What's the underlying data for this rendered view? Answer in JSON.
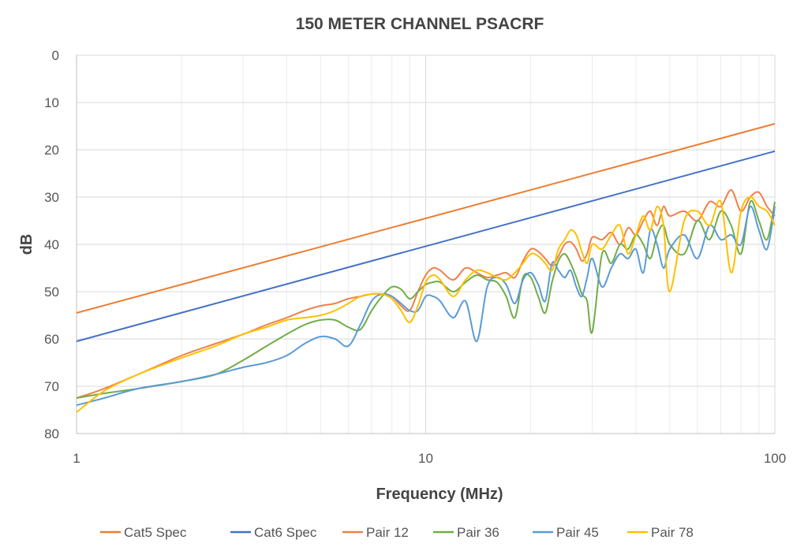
{
  "chart_data": {
    "type": "line",
    "title": "150 METER CHANNEL PSACRF",
    "xlabel": "Frequency (MHz)",
    "ylabel": "dB",
    "xscale": "log",
    "xlim": [
      1,
      100
    ],
    "ylim": [
      0,
      80
    ],
    "y_inverted": true,
    "x_ticks": [
      1,
      10,
      100
    ],
    "x_tick_labels": [
      "1",
      "10",
      "100"
    ],
    "y_ticks": [
      0,
      10,
      20,
      30,
      40,
      50,
      60,
      70,
      80
    ],
    "y_tick_labels": [
      "0",
      "10",
      "20",
      "30",
      "40",
      "50",
      "60",
      "70",
      "80"
    ],
    "grid": true,
    "legend_position": "bottom",
    "series": [
      {
        "name": "Cat5 Spec",
        "color": "#ED7D31",
        "x": [
          1,
          100
        ],
        "y": [
          54.5,
          14.5
        ]
      },
      {
        "name": "Cat6 Spec",
        "color": "#4472C4",
        "x": [
          1,
          100
        ],
        "y": [
          60.5,
          20.3
        ]
      },
      {
        "name": "Pair 12",
        "color": "#F0804A",
        "x": [
          1,
          1.2,
          1.5,
          2,
          2.5,
          3,
          3.5,
          4,
          4.5,
          5,
          5.5,
          6,
          6.5,
          7,
          7.5,
          8,
          8.5,
          9,
          9.5,
          10,
          10.5,
          11,
          12,
          13,
          14,
          15,
          16,
          17,
          18,
          19,
          20,
          21,
          22,
          23,
          24,
          25,
          26,
          27,
          28,
          29,
          30,
          32,
          34,
          36,
          38,
          40,
          42,
          44,
          46,
          48,
          50,
          55,
          60,
          65,
          70,
          75,
          80,
          85,
          90,
          95,
          100
        ],
        "y": [
          72.5,
          70.5,
          67.5,
          63.5,
          61,
          59,
          57,
          55.5,
          54,
          53,
          52.5,
          51.5,
          51,
          50.5,
          50.5,
          51,
          53,
          54,
          50,
          46.5,
          45,
          45.5,
          47.5,
          45,
          46,
          47,
          46.5,
          46,
          47,
          43.5,
          41,
          41.5,
          43,
          44.5,
          42.5,
          40,
          39.5,
          41,
          43.5,
          42,
          38.5,
          39,
          37.5,
          40,
          36.5,
          38,
          35,
          33,
          36,
          32,
          34,
          33,
          35,
          31,
          32,
          28.5,
          33,
          30,
          29,
          32,
          34
        ]
      },
      {
        "name": "Pair 36",
        "color": "#70AD47",
        "x": [
          1,
          1.2,
          1.5,
          2,
          2.5,
          3,
          3.5,
          4,
          4.5,
          5,
          5.5,
          6,
          6.5,
          7,
          7.5,
          8,
          8.5,
          9,
          9.5,
          10,
          10.5,
          11,
          12,
          13,
          14,
          15,
          16,
          17,
          18,
          19,
          20,
          21,
          22,
          23,
          24,
          25,
          26,
          27,
          28,
          29,
          30,
          32,
          34,
          36,
          38,
          40,
          42,
          44,
          46,
          48,
          50,
          55,
          60,
          65,
          70,
          75,
          80,
          85,
          90,
          95,
          100
        ],
        "y": [
          72.5,
          71.5,
          70.5,
          69,
          67.5,
          64.5,
          61.5,
          59,
          57,
          56,
          56,
          57.5,
          58,
          54,
          51,
          49,
          49.5,
          51.5,
          50,
          48.5,
          48,
          48,
          50,
          48,
          46.5,
          47.5,
          48,
          51,
          55.5,
          47,
          47,
          51,
          54.5,
          48,
          43.5,
          42,
          44,
          47,
          50.5,
          52,
          58.5,
          42,
          44,
          40,
          41,
          38,
          40,
          43,
          38,
          36,
          40,
          42,
          35,
          39,
          33,
          36,
          42,
          31,
          35,
          39,
          31
        ]
      },
      {
        "name": "Pair 45",
        "color": "#5B9BD5",
        "x": [
          1,
          1.2,
          1.5,
          2,
          2.5,
          3,
          3.5,
          4,
          4.5,
          5,
          5.5,
          6,
          6.5,
          7,
          7.5,
          8,
          8.5,
          9,
          9.5,
          10,
          10.5,
          11,
          12,
          13,
          14,
          15,
          16,
          17,
          18,
          19,
          20,
          21,
          22,
          23,
          24,
          25,
          26,
          27,
          28,
          29,
          30,
          32,
          34,
          36,
          38,
          40,
          42,
          44,
          46,
          48,
          50,
          55,
          60,
          65,
          70,
          75,
          80,
          85,
          90,
          95,
          100
        ],
        "y": [
          74,
          72.5,
          70.5,
          69,
          67.5,
          66,
          65,
          63.5,
          61,
          59.5,
          60,
          61.5,
          57,
          52,
          50.5,
          51,
          52.5,
          54,
          54,
          51,
          51,
          52,
          55.5,
          52,
          60.5,
          49,
          47,
          48.5,
          52.5,
          47.5,
          46,
          48.5,
          52,
          44,
          45.5,
          47,
          45.5,
          49,
          51,
          47,
          43,
          49,
          45,
          42,
          43,
          41,
          46,
          37,
          40,
          45,
          41,
          38,
          43,
          36,
          39,
          38,
          40,
          32,
          37,
          41,
          32
        ]
      },
      {
        "name": "Pair 78",
        "color": "#FFC000",
        "x": [
          1,
          1.2,
          1.5,
          2,
          2.5,
          3,
          3.5,
          4,
          4.5,
          5,
          5.5,
          6,
          6.5,
          7,
          7.5,
          8,
          8.5,
          9,
          9.5,
          10,
          10.5,
          11,
          12,
          13,
          14,
          15,
          16,
          17,
          18,
          19,
          20,
          21,
          22,
          23,
          24,
          25,
          26,
          27,
          28,
          29,
          30,
          32,
          34,
          36,
          38,
          40,
          42,
          44,
          46,
          48,
          50,
          55,
          60,
          65,
          70,
          75,
          80,
          85,
          90,
          95,
          100
        ],
        "y": [
          75.5,
          71,
          67.5,
          64,
          61.5,
          59,
          57.5,
          56,
          55.5,
          55,
          54,
          52.5,
          51,
          50.5,
          50.5,
          51.5,
          54,
          56.5,
          53,
          48,
          46.5,
          47.5,
          51,
          47.5,
          45.5,
          46,
          47,
          47.5,
          46,
          44,
          42,
          42.5,
          44,
          45.5,
          41,
          39,
          37,
          38,
          41.5,
          44,
          40,
          41,
          38,
          36,
          42,
          38,
          34,
          37,
          32,
          36,
          50,
          35,
          33,
          36,
          31,
          46,
          33,
          30,
          32,
          33,
          36
        ]
      }
    ]
  }
}
